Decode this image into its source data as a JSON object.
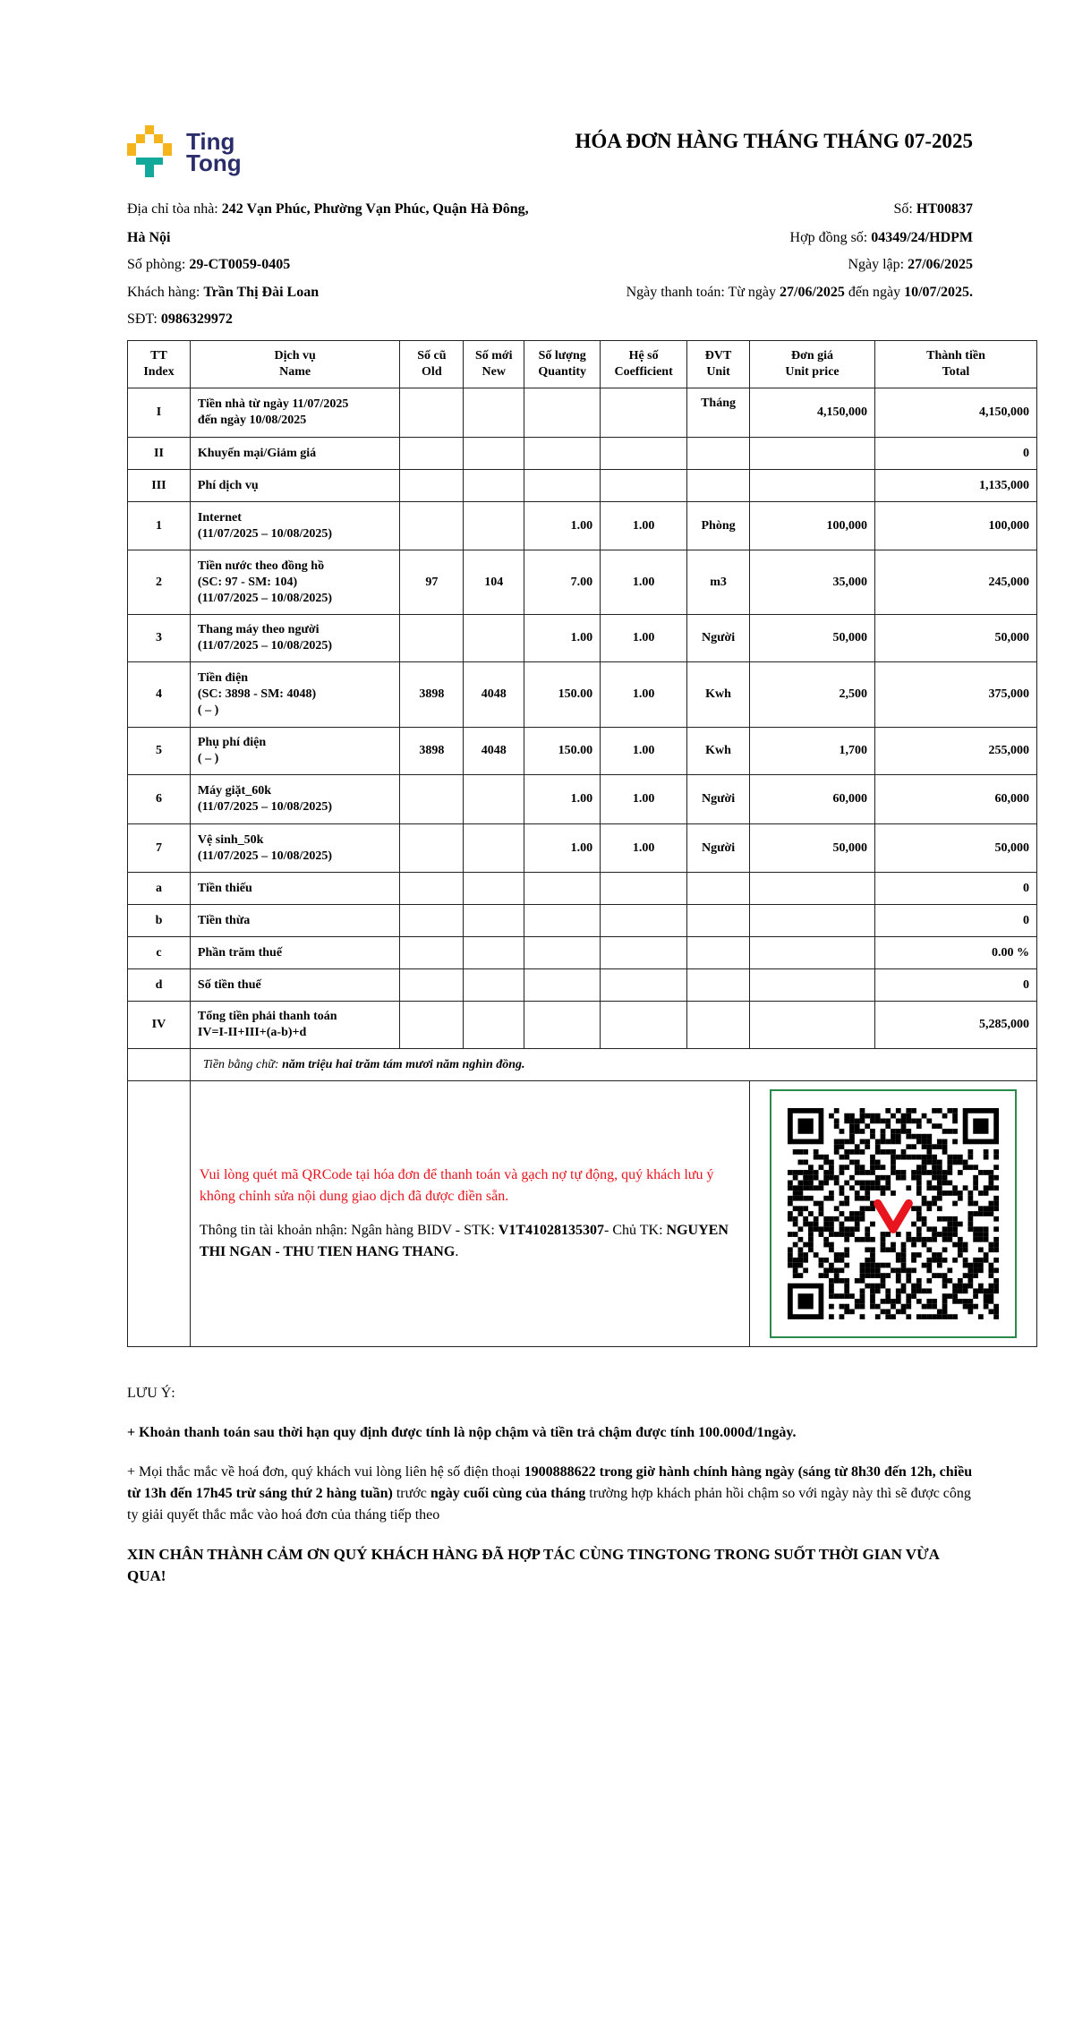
{
  "logo": {
    "line1": "Ting",
    "line2": "Tong",
    "colors": {
      "yellow": "#f5b41c",
      "teal": "#12a89a",
      "navy": "#2b2d6b"
    }
  },
  "title": "HÓA ĐƠN HÀNG THÁNG THÁNG 07-2025",
  "info": {
    "address_label": "Địa chỉ tòa nhà: ",
    "address": "242 Vạn Phúc, Phường Vạn Phúc, Quận Hà Đông,",
    "address2": "Hà Nội",
    "room_label": "Số phòng: ",
    "room": "29-CT0059-0405",
    "customer_label": "Khách hàng: ",
    "customer": "Trần Thị Đài Loan",
    "phone_label": "SĐT: ",
    "phone": "0986329972",
    "no_label": "Số: ",
    "no": "HT00837",
    "contract_label": "Hợp đồng số: ",
    "contract": "04349/24/HDPM",
    "date_label": "Ngày lập: ",
    "date": "27/06/2025",
    "pay_label": "Ngày thanh toán: Từ ngày ",
    "pay_from": "27/06/2025",
    "pay_mid": " đến ngày ",
    "pay_to": "10/07/2025."
  },
  "table": {
    "headers": [
      [
        "TT",
        "Index"
      ],
      [
        "Dịch vụ",
        "Name"
      ],
      [
        "Số cũ",
        "Old"
      ],
      [
        "Số mới",
        "New"
      ],
      [
        "Số lượng",
        "Quantity"
      ],
      [
        "Hệ số",
        "Coefficient"
      ],
      [
        "ĐVT",
        "Unit"
      ],
      [
        "Đơn giá",
        "Unit price"
      ],
      [
        "Thành tiền",
        "Total"
      ]
    ],
    "rows": [
      [
        "I",
        "Tiền nhà từ ngày 11/07/2025\nđến ngày 10/08/2025",
        "",
        "",
        "",
        "",
        "Tháng",
        "4,150,000",
        "4,150,000"
      ],
      [
        "II",
        "Khuyến mại/Giảm giá",
        "",
        "",
        "",
        "",
        "",
        "",
        "0"
      ],
      [
        "III",
        "Phí dịch vụ",
        "",
        "",
        "",
        "",
        "",
        "",
        "1,135,000"
      ],
      [
        "1",
        "Internet\n(11/07/2025 – 10/08/2025)",
        "",
        "",
        "1.00",
        "1.00",
        "Phòng",
        "100,000",
        "100,000"
      ],
      [
        "2",
        "Tiền nước theo đồng hồ\n(SC: 97 - SM: 104)\n(11/07/2025 – 10/08/2025)",
        "97",
        "104",
        "7.00",
        "1.00",
        "m3",
        "35,000",
        "245,000"
      ],
      [
        "3",
        "Thang máy theo người\n(11/07/2025 – 10/08/2025)",
        "",
        "",
        "1.00",
        "1.00",
        "Người",
        "50,000",
        "50,000"
      ],
      [
        "4",
        "Tiền điện\n(SC: 3898 - SM: 4048)\n( – )",
        "3898",
        "4048",
        "150.00",
        "1.00",
        "Kwh",
        "2,500",
        "375,000"
      ],
      [
        "5",
        "Phụ phí điện\n( – )",
        "3898",
        "4048",
        "150.00",
        "1.00",
        "Kwh",
        "1,700",
        "255,000"
      ],
      [
        "6",
        "Máy giặt_60k\n(11/07/2025 – 10/08/2025)",
        "",
        "",
        "1.00",
        "1.00",
        "Người",
        "60,000",
        "60,000"
      ],
      [
        "7",
        "Vệ sinh_50k\n(11/07/2025 – 10/08/2025)",
        "",
        "",
        "1.00",
        "1.00",
        "Người",
        "50,000",
        "50,000"
      ],
      [
        "a",
        "Tiền thiếu",
        "",
        "",
        "",
        "",
        "",
        "",
        "0"
      ],
      [
        "b",
        "Tiền thừa",
        "",
        "",
        "",
        "",
        "",
        "",
        "0"
      ],
      [
        "c",
        "Phần trăm thuế",
        "",
        "",
        "",
        "",
        "",
        "",
        "0.00 %"
      ],
      [
        "d",
        "Số tiền thuế",
        "",
        "",
        "",
        "",
        "",
        "",
        "0"
      ],
      [
        "IV",
        "Tổng tiền phải thanh toán\nIV=I-II+III+(a-b)+d",
        "",
        "",
        "",
        "",
        "",
        "",
        "5,285,000"
      ]
    ],
    "words_label": "Tiền bằng chữ: ",
    "words": "năm triệu hai trăm tám mươi năm nghìn đồng."
  },
  "payment": {
    "notice": "Vui lòng quét mã QRCode tại hóa đơn để thanh toán và gạch nợ tự động, quý khách lưu ý không chỉnh sửa nội dung giao dịch đã được điền sẵn.",
    "account_label": "Thông tin tài khoản nhận: Ngân hàng BIDV - STK: ",
    "account": "V1T41028135307",
    "holder_label": "- Chủ TK: ",
    "holder": "NGUYEN THI NGAN - THU TIEN HANG THANG",
    "holder_end": ".",
    "qr_border": "#2a8a4a",
    "notice_color": "#e8141e"
  },
  "notes": {
    "heading": "LƯU Ý:",
    "note1": "+ Khoản thanh toán sau thời hạn quy định được tính là nộp chậm và tiền trả chậm được tính 100.000đ/1ngày.",
    "note2a": "+ Mọi thắc mắc về hoá đơn, quý khách vui lòng liên hệ số điện thoại ",
    "note2b": "1900888622 trong giờ hành chính hàng ngày (sáng từ 8h30 đến 12h, chiều từ 13h đến 17h45 trừ sáng thứ 2 hàng tuần)",
    "note2c": " trước ",
    "note2d": "ngày cuối cùng của tháng",
    "note2e": " trường hợp khách phản hồi chậm so với ngày này thì sẽ được công ty giải quyết thắc mắc vào hoá đơn của tháng tiếp theo",
    "thanks": "XIN CHÂN THÀNH CẢM ƠN QUÝ KHÁCH HÀNG ĐÃ HỢP TÁC CÙNG TINGTONG TRONG SUỐT THỜI GIAN VỪA QUA!"
  }
}
